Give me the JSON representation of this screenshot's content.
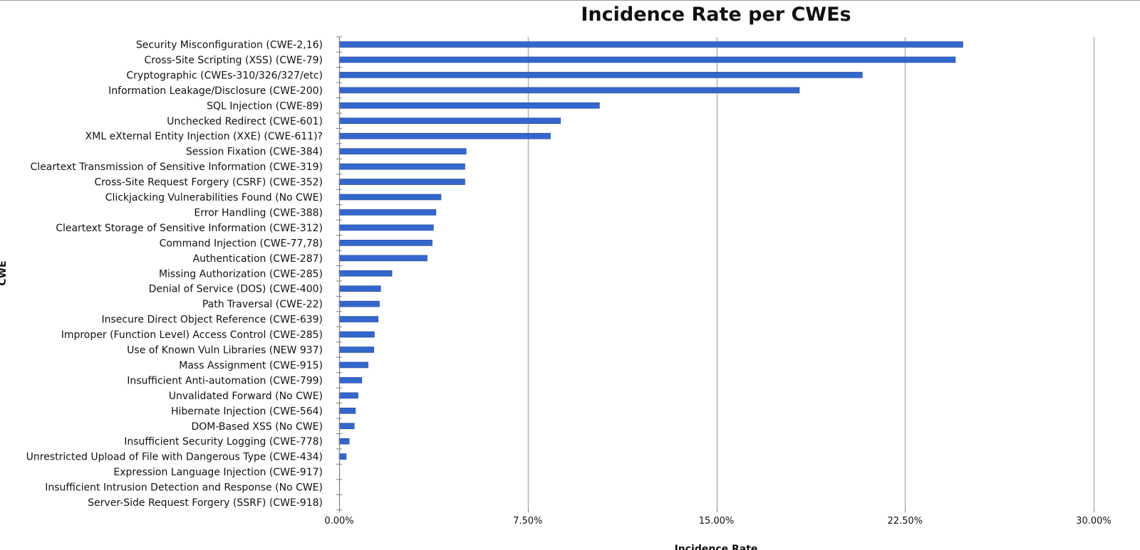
{
  "chart_data": {
    "type": "bar",
    "orientation": "horizontal",
    "title": "Incidence Rate per CWEs",
    "xlabel": "Incidence Rate",
    "ylabel": "CWE",
    "xlim": [
      0,
      30
    ],
    "x_tick_labels": [
      "0.00%",
      "7.50%",
      "15.00%",
      "22.50%",
      "30.00%"
    ],
    "x_ticks": [
      0,
      7.5,
      15,
      22.5,
      30
    ],
    "grid": "vertical",
    "bar_color": "#3467cc",
    "categories": [
      "Security Misconfiguration (CWE-2,16)",
      "Cross-Site Scripting (XSS) (CWE-79)",
      "Cryptographic (CWEs-310/326/327/etc)",
      "Information Leakage/Disclosure (CWE-200)",
      "SQL Injection (CWE-89)",
      "Unchecked Redirect (CWE-601)",
      "XML eXternal Entity Injection (XXE) (CWE-611)?",
      "Session Fixation (CWE-384)",
      "Cleartext Transmission of Sensitive Information (CWE-319)",
      "Cross-Site Request Forgery (CSRF) (CWE-352)",
      "Clickjacking Vulnerabilities Found (No CWE)",
      "Error Handling (CWE-388)",
      "Cleartext Storage of Sensitive Information (CWE-312)",
      "Command Injection (CWE-77,78)",
      "Authentication (CWE-287)",
      "Missing Authorization (CWE-285)",
      "Denial of Service (DOS) (CWE-400)",
      "Path Traversal (CWE-22)",
      "Insecure Direct Object Reference (CWE-639)",
      "Improper (Function Level) Access Control (CWE-285)",
      "Use of Known Vuln Libraries (NEW 937)",
      "Mass Assignment (CWE-915)",
      "Insufficient Anti-automation (CWE-799)",
      "Unvalidated Forward (No CWE)",
      "Hibernate Injection (CWE-564)",
      "DOM-Based XSS (No CWE)",
      "Insufficient Security Logging (CWE-778)",
      "Unrestricted Upload of File with Dangerous Type (CWE-434)",
      "Expression Language Injection (CWE-917)",
      "Insufficient Intrusion Detection and Response (No CWE)",
      "Server-Side Request Forgery (SSRF) (CWE-918)"
    ],
    "values": [
      24.8,
      24.5,
      20.8,
      18.3,
      10.35,
      8.8,
      8.4,
      5.05,
      5.0,
      5.0,
      4.05,
      3.85,
      3.75,
      3.7,
      3.5,
      2.1,
      1.65,
      1.6,
      1.55,
      1.4,
      1.38,
      1.15,
      0.9,
      0.75,
      0.65,
      0.6,
      0.4,
      0.28,
      0.0,
      0.0,
      0.0
    ]
  }
}
